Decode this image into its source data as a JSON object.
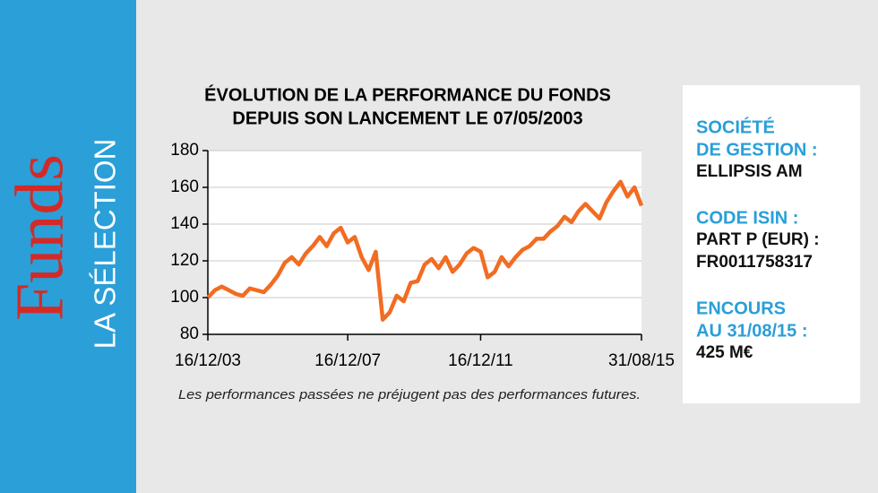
{
  "sidebar": {
    "brand": "Funds",
    "subtitle": "LA SÉLECTION"
  },
  "chart_data": {
    "type": "line",
    "title": [
      "ÉVOLUTION DE LA PERFORMANCE DU FONDS",
      "DEPUIS SON LANCEMENT LE 07/05/2003"
    ],
    "values": [
      100,
      104,
      106,
      104,
      102,
      101,
      105,
      104,
      103,
      107,
      112,
      119,
      122,
      118,
      124,
      128,
      133,
      128,
      135,
      138,
      130,
      133,
      122,
      115,
      125,
      88,
      92,
      101,
      98,
      108,
      109,
      118,
      121,
      116,
      122,
      114,
      118,
      124,
      127,
      125,
      111,
      114,
      122,
      117,
      122,
      126,
      128,
      132,
      132,
      136,
      139,
      144,
      141,
      147,
      151,
      147,
      143,
      152,
      158,
      163,
      155,
      160,
      150
    ],
    "color": "#f26c22",
    "xlim": [
      0,
      62
    ],
    "xticks": [
      {
        "value": 0,
        "label": "16/12/03"
      },
      {
        "value": 20,
        "label": "16/12/07"
      },
      {
        "value": 39,
        "label": "16/12/11"
      },
      {
        "value": 62,
        "label": "31/08/15"
      }
    ],
    "ylim": [
      80,
      180
    ],
    "yticks": [
      80,
      100,
      120,
      140,
      160,
      180
    ],
    "grid": true
  },
  "note": "Les performances passées ne préjugent pas des performances futures.",
  "info": [
    {
      "label": [
        "SOCIÉTÉ",
        "DE GESTION :"
      ],
      "value": [
        "ELLIPSIS AM"
      ]
    },
    {
      "label": [
        "CODE ISIN :"
      ],
      "value": [
        "PART P (EUR) :",
        "FR0011758317"
      ]
    },
    {
      "label": [
        "ENCOURS",
        "AU 31/08/15 :"
      ],
      "value": [
        "425 M€"
      ]
    }
  ]
}
